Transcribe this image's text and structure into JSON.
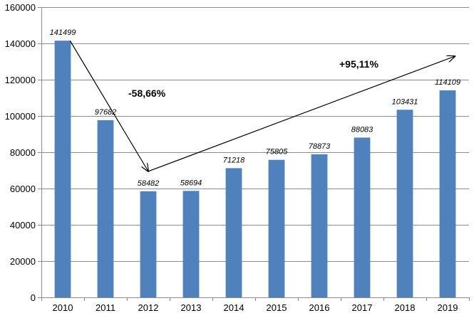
{
  "chart_data": {
    "type": "bar",
    "title": "",
    "xlabel": "",
    "ylabel": "",
    "categories": [
      "2010",
      "2011",
      "2012",
      "2013",
      "2014",
      "2015",
      "2016",
      "2017",
      "2018",
      "2019"
    ],
    "values": [
      141499,
      97682,
      58482,
      58694,
      71218,
      75805,
      78873,
      88083,
      103431,
      114109
    ],
    "ylim": [
      0,
      160000
    ],
    "yticks": [
      0,
      20000,
      40000,
      60000,
      80000,
      100000,
      120000,
      140000,
      160000
    ],
    "grid": true,
    "legend": "none",
    "bar_color": "#4F81BD",
    "annotations": [
      {
        "text": "-58,66%",
        "from_category": "2010",
        "to_category": "2012"
      },
      {
        "text": "+95,11%",
        "from_category": "2012",
        "to_category": "2019"
      }
    ]
  }
}
